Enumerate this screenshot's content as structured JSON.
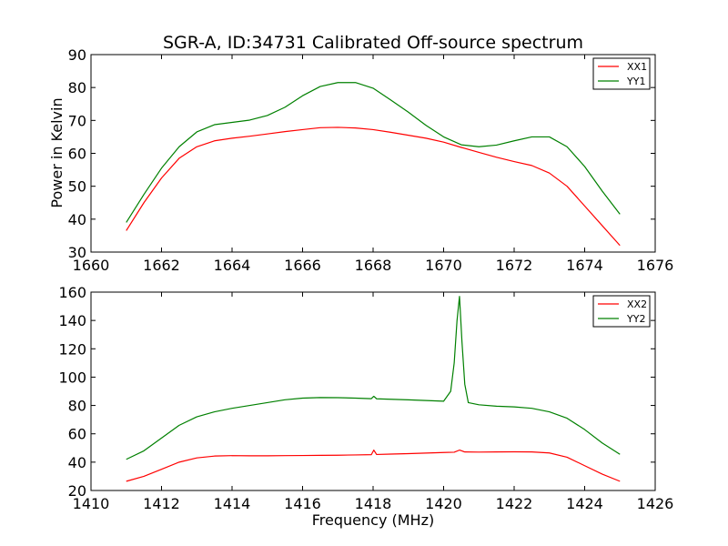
{
  "chart_data": [
    {
      "type": "line",
      "title": "SGR-A, ID:34731 Calibrated Off-source spectrum",
      "xlabel": "",
      "ylabel": "Power in Kelvin",
      "xlim": [
        1660,
        1676
      ],
      "ylim": [
        30,
        90
      ],
      "xticks": [
        "1660",
        "1662",
        "1664",
        "1666",
        "1668",
        "1670",
        "1672",
        "1674",
        "1676"
      ],
      "yticks": [
        "30",
        "40",
        "50",
        "60",
        "70",
        "80",
        "90"
      ],
      "legend_placement": "top-right",
      "grid": false,
      "series": [
        {
          "name": "XX1",
          "color": "#ff0000",
          "x": [
            1661.0,
            1661.5,
            1662.0,
            1662.5,
            1663.0,
            1663.5,
            1664.0,
            1664.5,
            1665.0,
            1665.5,
            1666.0,
            1666.5,
            1667.0,
            1667.5,
            1668.0,
            1668.5,
            1669.0,
            1669.5,
            1670.0,
            1670.5,
            1671.0,
            1671.5,
            1672.0,
            1672.5,
            1673.0,
            1673.5,
            1674.0,
            1674.5,
            1675.0
          ],
          "values": [
            36.5,
            45.0,
            52.5,
            58.5,
            62.0,
            63.8,
            64.6,
            65.2,
            65.9,
            66.6,
            67.2,
            67.8,
            67.9,
            67.7,
            67.2,
            66.4,
            65.5,
            64.6,
            63.4,
            61.8,
            60.3,
            58.8,
            57.5,
            56.3,
            54.0,
            50.0,
            44.0,
            38.0,
            32.0
          ]
        },
        {
          "name": "YY1",
          "color": "#008000",
          "x": [
            1661.0,
            1661.5,
            1662.0,
            1662.5,
            1663.0,
            1663.5,
            1664.0,
            1664.5,
            1665.0,
            1665.5,
            1666.0,
            1666.5,
            1667.0,
            1667.5,
            1668.0,
            1668.5,
            1669.0,
            1669.5,
            1670.0,
            1670.5,
            1671.0,
            1671.5,
            1672.0,
            1672.5,
            1673.0,
            1673.5,
            1674.0,
            1674.5,
            1675.0
          ],
          "values": [
            39.0,
            47.5,
            55.5,
            62.0,
            66.5,
            68.7,
            69.4,
            70.1,
            71.5,
            74.0,
            77.5,
            80.3,
            81.5,
            81.5,
            79.8,
            76.2,
            72.5,
            68.5,
            65.0,
            62.6,
            62.0,
            62.5,
            63.8,
            65.0,
            65.0,
            62.0,
            56.0,
            48.5,
            41.5
          ]
        }
      ]
    },
    {
      "type": "line",
      "title": "",
      "xlabel": "Frequency (MHz)",
      "ylabel": "",
      "xlim": [
        1410,
        1426
      ],
      "ylim": [
        20,
        160
      ],
      "xticks": [
        "1410",
        "1412",
        "1414",
        "1416",
        "1418",
        "1420",
        "1422",
        "1424",
        "1426"
      ],
      "yticks": [
        "20",
        "40",
        "60",
        "80",
        "100",
        "120",
        "140",
        "160"
      ],
      "legend_placement": "top-right",
      "grid": false,
      "series": [
        {
          "name": "XX2",
          "color": "#ff0000",
          "x": [
            1411.0,
            1411.5,
            1412.0,
            1412.5,
            1413.0,
            1413.5,
            1414.0,
            1414.5,
            1415.0,
            1415.5,
            1416.0,
            1416.5,
            1417.0,
            1417.5,
            1417.95,
            1418.02,
            1418.1,
            1418.5,
            1419.0,
            1419.5,
            1420.0,
            1420.3,
            1420.45,
            1420.6,
            1421.0,
            1421.5,
            1422.0,
            1422.5,
            1423.0,
            1423.5,
            1424.0,
            1424.5,
            1425.0
          ],
          "values": [
            26.5,
            30.0,
            35.0,
            40.0,
            43.0,
            44.3,
            44.6,
            44.5,
            44.5,
            44.6,
            44.7,
            44.8,
            44.9,
            45.1,
            45.3,
            48.5,
            45.4,
            45.7,
            46.0,
            46.4,
            46.8,
            47.0,
            48.5,
            47.2,
            47.1,
            47.2,
            47.3,
            47.2,
            46.5,
            43.5,
            37.5,
            31.5,
            26.5
          ]
        },
        {
          "name": "YY2",
          "color": "#008000",
          "x": [
            1411.0,
            1411.5,
            1412.0,
            1412.5,
            1413.0,
            1413.5,
            1414.0,
            1414.5,
            1415.0,
            1415.5,
            1416.0,
            1416.5,
            1417.0,
            1417.5,
            1417.95,
            1418.02,
            1418.1,
            1418.5,
            1419.0,
            1419.5,
            1420.0,
            1420.2,
            1420.3,
            1420.38,
            1420.45,
            1420.52,
            1420.6,
            1420.7,
            1421.0,
            1421.5,
            1422.0,
            1422.5,
            1423.0,
            1423.5,
            1424.0,
            1424.5,
            1425.0
          ],
          "values": [
            42.0,
            48.0,
            57.0,
            66.0,
            72.0,
            75.5,
            78.0,
            80.0,
            82.0,
            84.0,
            85.2,
            85.6,
            85.5,
            85.2,
            84.8,
            86.5,
            84.7,
            84.4,
            84.0,
            83.5,
            83.0,
            90.0,
            110.0,
            140.0,
            157.0,
            125.0,
            95.0,
            82.0,
            80.5,
            79.5,
            79.0,
            78.0,
            75.5,
            71.0,
            63.0,
            53.5,
            45.5
          ]
        }
      ]
    }
  ]
}
